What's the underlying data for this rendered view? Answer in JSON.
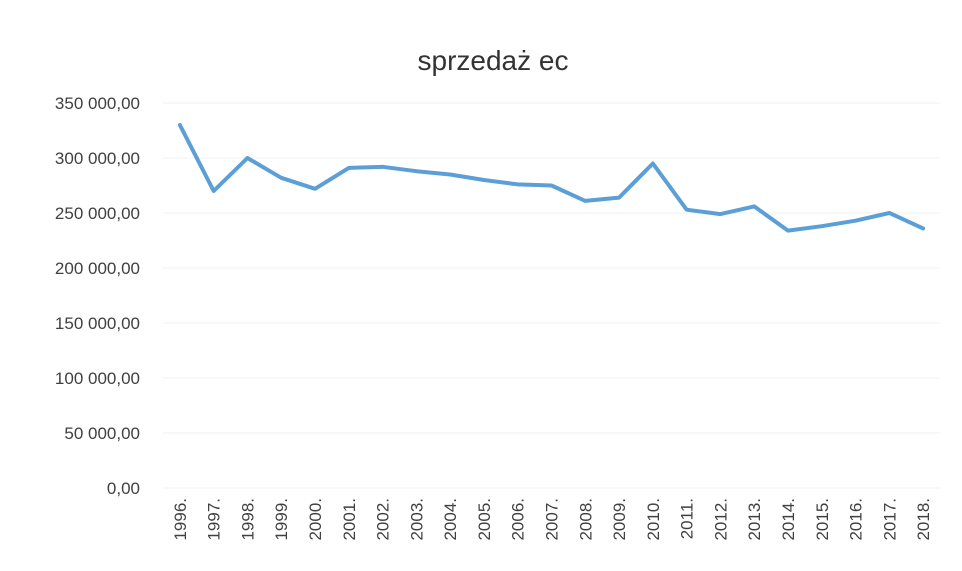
{
  "chart_data": {
    "type": "line",
    "title": "sprzedaż ec",
    "categories": [
      "1996.",
      "1997.",
      "1998.",
      "1999.",
      "2000.",
      "2001.",
      "2002.",
      "2003.",
      "2004.",
      "2005.",
      "2006.",
      "2007.",
      "2008.",
      "2009.",
      "2010.",
      "2011.",
      "2012.",
      "2013.",
      "2014.",
      "2015.",
      "2016.",
      "2017.",
      "2018."
    ],
    "series": [
      {
        "color": "#5b9fd6",
        "values": [
          330000,
          270000,
          300000,
          282000,
          272000,
          291000,
          292000,
          288000,
          285000,
          280000,
          276000,
          275000,
          261000,
          264000,
          295000,
          253000,
          249000,
          256000,
          234000,
          238000,
          243000,
          250000,
          236000
        ]
      }
    ],
    "ylim": [
      0,
      350000
    ],
    "yticks": [
      {
        "value": 0,
        "label": "0,00"
      },
      {
        "value": 50000,
        "label": "50 000,00"
      },
      {
        "value": 100000,
        "label": "100 000,00"
      },
      {
        "value": 150000,
        "label": "150 000,00"
      },
      {
        "value": 200000,
        "label": "200 000,00"
      },
      {
        "value": 250000,
        "label": "250 000,00"
      },
      {
        "value": 300000,
        "label": "300 000,00"
      },
      {
        "value": 350000,
        "label": "350 000,00"
      }
    ],
    "grid": true
  }
}
